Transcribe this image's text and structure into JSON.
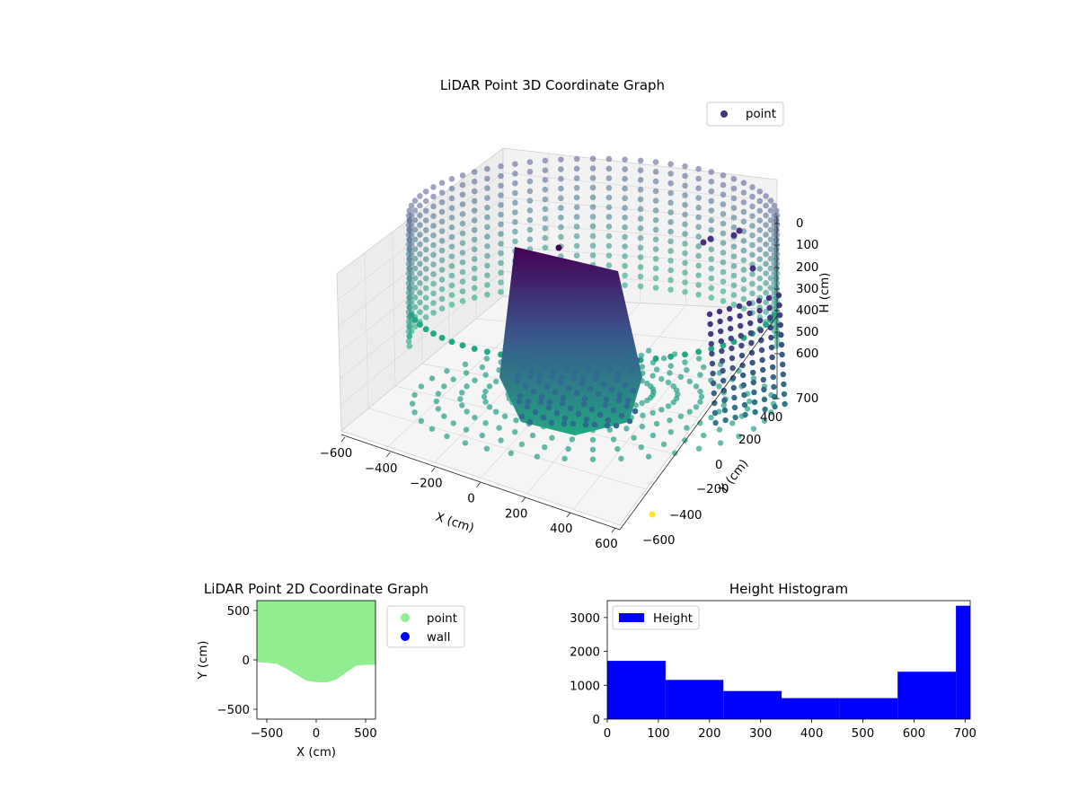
{
  "figure": {
    "background": "#ffffff"
  },
  "chart_data": [
    {
      "type": "scatter",
      "subtype": "3d",
      "title": "LiDAR Point 3D Coordinate Graph",
      "xlabel": "X (cm)",
      "ylabel": "Y (cm)",
      "zlabel": "H (cm)",
      "xticks": [
        "−600",
        "−400",
        "−200",
        "0",
        "200",
        "400",
        "600"
      ],
      "yticks": [
        "−600",
        "−400",
        "−200",
        "0",
        "200",
        "400"
      ],
      "zticks": [
        "0",
        "100",
        "200",
        "300",
        "400",
        "500",
        "600",
        "700"
      ],
      "xlim": [
        -600,
        600
      ],
      "ylim": [
        -600,
        600
      ],
      "zlim": [
        0,
        700
      ],
      "zaxis_inverted": true,
      "legend": {
        "entries": [
          "point"
        ],
        "placement": "upper-right"
      },
      "colormap": "viridis",
      "colors": {
        "marker": "#46327e",
        "surface_low": "#22a884",
        "surface_high": "#440154"
      },
      "grid": true
    },
    {
      "type": "scatter",
      "subtype": "2d",
      "title": "LiDAR Point 2D Coordinate Graph",
      "xlabel": "X (cm)",
      "ylabel": "Y (cm)",
      "xticks": [
        "−500",
        "0",
        "500"
      ],
      "yticks": [
        "−500",
        "0",
        "500"
      ],
      "xlim": [
        -600,
        600
      ],
      "ylim": [
        -600,
        600
      ],
      "series": [
        {
          "name": "point",
          "color": "#90ee90"
        },
        {
          "name": "wall",
          "color": "#0000ff"
        }
      ],
      "region": {
        "x": [
          -600,
          -500,
          -400,
          -300,
          -200,
          -100,
          0,
          100,
          200,
          300,
          400,
          500,
          600
        ],
        "y_lower": [
          -20,
          -30,
          -40,
          -90,
          -150,
          -210,
          -225,
          -230,
          -200,
          -130,
          -60,
          -50,
          -50
        ],
        "y_upper": 600
      },
      "legend": {
        "entries": [
          "point",
          "wall"
        ],
        "placement": "outside-right"
      }
    },
    {
      "type": "bar",
      "subtype": "histogram",
      "title": "Height Histogram",
      "legend": {
        "entries": [
          "Height"
        ],
        "placement": "upper-left"
      },
      "bin_edges": [
        0,
        114,
        227,
        341,
        455,
        568,
        682,
        710
      ],
      "values": [
        1720,
        1160,
        830,
        620,
        620,
        1400,
        3350
      ],
      "xlim": [
        0,
        710
      ],
      "ylim": [
        0,
        3500
      ],
      "xticks": [
        "0",
        "100",
        "200",
        "300",
        "400",
        "500",
        "600",
        "700"
      ],
      "yticks": [
        "0",
        "1000",
        "2000",
        "3000"
      ],
      "colors": {
        "bar": "#0000ff"
      }
    }
  ]
}
